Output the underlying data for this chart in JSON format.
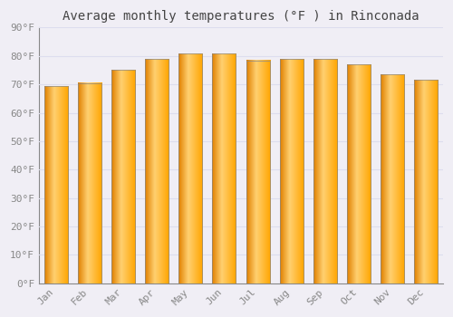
{
  "title": "Average monthly temperatures (°F ) in Rinconada",
  "months": [
    "Jan",
    "Feb",
    "Mar",
    "Apr",
    "May",
    "Jun",
    "Jul",
    "Aug",
    "Sep",
    "Oct",
    "Nov",
    "Dec"
  ],
  "values": [
    69.5,
    70.5,
    75,
    79,
    81,
    81,
    78.5,
    79,
    79,
    77,
    73.5,
    71.5
  ],
  "bar_color_main": "#FFAA00",
  "bar_color_highlight": "#FFD060",
  "bar_color_dark": "#E08000",
  "background_color": "#F0EEF5",
  "plot_bg_color": "#F0EEF5",
  "grid_color": "#DDDDEE",
  "text_color": "#888888",
  "title_color": "#444444",
  "border_color": "#888888",
  "ylim": [
    0,
    90
  ],
  "yticks": [
    0,
    10,
    20,
    30,
    40,
    50,
    60,
    70,
    80,
    90
  ],
  "ytick_labels": [
    "0°F",
    "10°F",
    "20°F",
    "30°F",
    "40°F",
    "50°F",
    "60°F",
    "70°F",
    "80°F",
    "90°F"
  ],
  "font_family": "monospace",
  "title_fontsize": 10,
  "tick_fontsize": 8
}
